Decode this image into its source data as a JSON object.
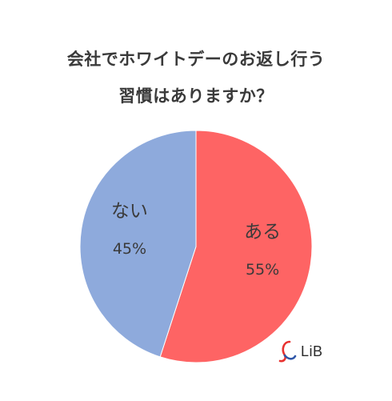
{
  "title_lines": [
    "会社でホワイトデーのお返し行う",
    "習慣はありますか？"
  ],
  "chart_data": {
    "type": "pie",
    "title": "会社でホワイトデーのお返し行う習慣はありますか？",
    "slices": [
      {
        "label": "ある",
        "value": 55,
        "value_label": "55%",
        "color": "#fe6464"
      },
      {
        "label": "ない",
        "value": 45,
        "value_label": "45%",
        "color": "#8eaadc"
      }
    ],
    "start_angle_deg": 0,
    "direction": "clockwise",
    "legend": "none"
  },
  "logo": {
    "text": "LiB",
    "icon": "lib-ribbon-logo-icon",
    "colors": {
      "red": "#e8312f",
      "blue": "#2f57a8"
    }
  }
}
